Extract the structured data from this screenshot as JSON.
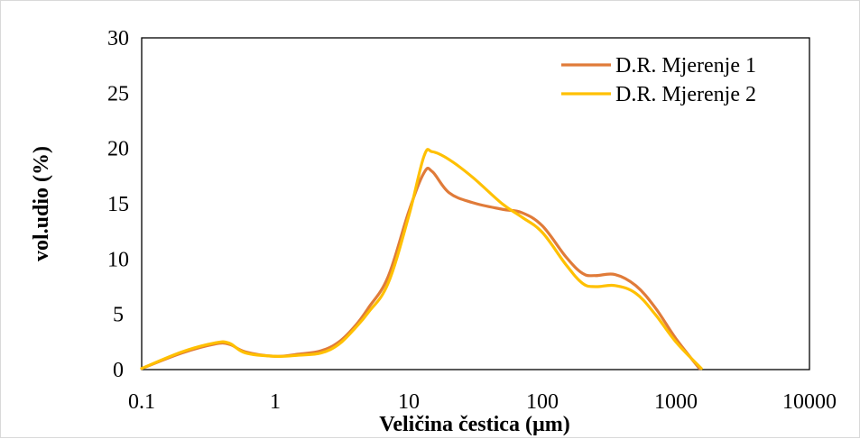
{
  "chart_data": {
    "type": "line",
    "title": "",
    "xlabel": "Veličina čestica (µm)",
    "ylabel": "vol.udio (%)",
    "x_scale": "log",
    "xlim": [
      0.1,
      10000
    ],
    "ylim": [
      0,
      30
    ],
    "x_ticks": [
      {
        "value": 0.1,
        "label": "0.1"
      },
      {
        "value": 1,
        "label": "1"
      },
      {
        "value": 10,
        "label": "10"
      },
      {
        "value": 100,
        "label": "100"
      },
      {
        "value": 1000,
        "label": "1000"
      },
      {
        "value": 10000,
        "label": "10000"
      }
    ],
    "y_ticks": [
      {
        "value": 0,
        "label": "0"
      },
      {
        "value": 5,
        "label": "5"
      },
      {
        "value": 10,
        "label": "10"
      },
      {
        "value": 15,
        "label": "15"
      },
      {
        "value": 20,
        "label": "20"
      },
      {
        "value": 25,
        "label": "25"
      },
      {
        "value": 30,
        "label": "30"
      }
    ],
    "grid": false,
    "legend_position": "top-right",
    "series": [
      {
        "name": "D.R. Mjerenje 1",
        "color": "#E07B39",
        "points": [
          [
            0.1,
            0.1
          ],
          [
            0.2,
            1.5
          ],
          [
            0.35,
            2.3
          ],
          [
            0.45,
            2.3
          ],
          [
            0.6,
            1.6
          ],
          [
            1,
            1.2
          ],
          [
            1.5,
            1.4
          ],
          [
            2.2,
            1.7
          ],
          [
            3,
            2.5
          ],
          [
            4,
            4.0
          ],
          [
            5,
            5.6
          ],
          [
            7,
            8.4
          ],
          [
            10,
            14.3
          ],
          [
            13,
            17.8
          ],
          [
            15,
            17.9
          ],
          [
            20,
            16.0
          ],
          [
            30,
            15.1
          ],
          [
            50,
            14.5
          ],
          [
            70,
            14.2
          ],
          [
            100,
            13.0
          ],
          [
            150,
            10.2
          ],
          [
            200,
            8.7
          ],
          [
            250,
            8.5
          ],
          [
            350,
            8.6
          ],
          [
            500,
            7.6
          ],
          [
            700,
            5.6
          ],
          [
            1000,
            2.8
          ],
          [
            1500,
            0.1
          ]
        ]
      },
      {
        "name": "D.R. Mjerenje 2",
        "color": "#FFC000",
        "points": [
          [
            0.1,
            0.1
          ],
          [
            0.2,
            1.6
          ],
          [
            0.35,
            2.4
          ],
          [
            0.45,
            2.4
          ],
          [
            0.6,
            1.5
          ],
          [
            1,
            1.2
          ],
          [
            1.5,
            1.3
          ],
          [
            2.2,
            1.5
          ],
          [
            3,
            2.3
          ],
          [
            4,
            3.8
          ],
          [
            5,
            5.2
          ],
          [
            7,
            7.8
          ],
          [
            10,
            13.9
          ],
          [
            13,
            19.3
          ],
          [
            15,
            19.7
          ],
          [
            20,
            19.0
          ],
          [
            30,
            17.4
          ],
          [
            50,
            15.0
          ],
          [
            70,
            13.8
          ],
          [
            100,
            12.4
          ],
          [
            150,
            9.5
          ],
          [
            200,
            7.8
          ],
          [
            250,
            7.5
          ],
          [
            350,
            7.6
          ],
          [
            500,
            6.9
          ],
          [
            700,
            5.0
          ],
          [
            1000,
            2.5
          ],
          [
            1550,
            0.1
          ]
        ]
      }
    ]
  }
}
